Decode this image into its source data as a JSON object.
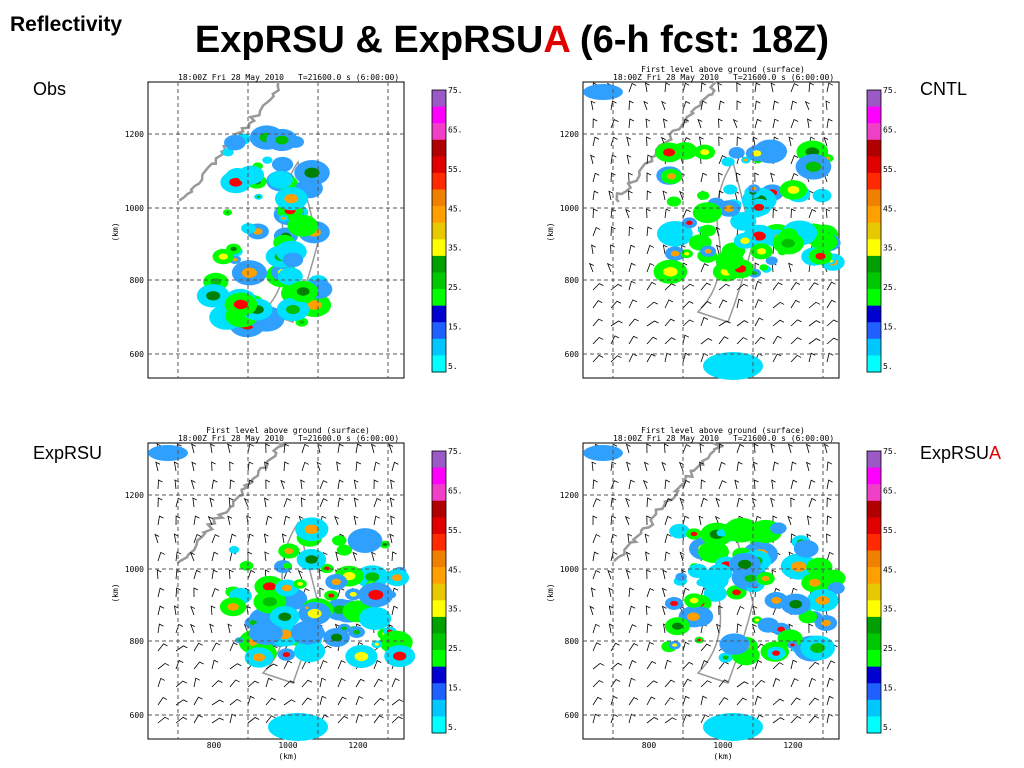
{
  "header": {
    "section": "Reflectivity",
    "title": {
      "part1": "ExpRSU & ExpRSU",
      "highlight": "A",
      "part2": " (6-h fcst: 18Z)"
    }
  },
  "colorbar_labels": [
    "75.",
    "65.",
    "55.",
    "45.",
    "35.",
    "25.",
    "15.",
    "5."
  ],
  "panels": [
    {
      "label": "Obs",
      "timestamp": "18:00Z Fri 28 May 2010",
      "time": "T=21600.0 s (6:00:00)",
      "yticks": [
        "1200",
        "1000",
        "800",
        "600"
      ],
      "yunit": "(km)"
    },
    {
      "label": "CNTL",
      "subtitle": "First level above ground (surface)",
      "timestamp": "18:00Z Fri 28 May 2010",
      "time": "T=21600.0 s (6:00:00)",
      "yticks": [
        "1200",
        "1000",
        "800",
        "600"
      ],
      "yunit": "(km)"
    },
    {
      "label": "ExpRSU",
      "subtitle": "First level above ground (surface)",
      "timestamp": "18:00Z Fri 28 May 2010",
      "time": "T=21600.0 s (6:00:00)",
      "yticks": [
        "1200",
        "1000",
        "800",
        "600"
      ],
      "yunit": "(km)",
      "xticks": [
        "800",
        "1000",
        "1200"
      ],
      "xunit": "(km)"
    },
    {
      "label": "ExpRSU",
      "label_highlight": "A",
      "subtitle": "First level above ground (surface)",
      "timestamp": "18:00Z Fri 28 May 2010",
      "time": "T=21600.0 s (6:00:00)",
      "yticks": [
        "1200",
        "1000",
        "800",
        "600"
      ],
      "yunit": "(km)",
      "xticks": [
        "800",
        "1000",
        "1200"
      ],
      "xunit": "(km)"
    }
  ]
}
